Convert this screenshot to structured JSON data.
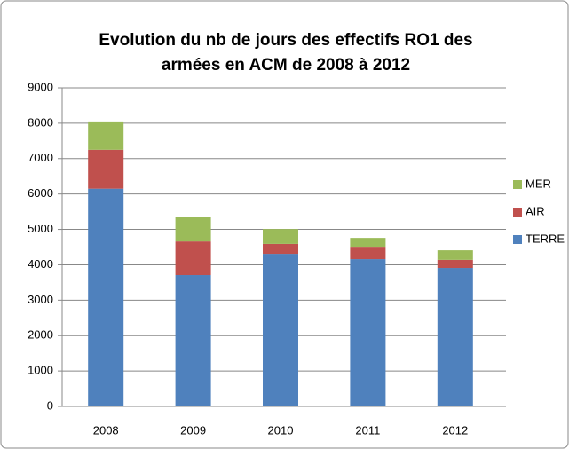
{
  "chart_data": {
    "type": "stacked_bar",
    "title": [
      "Evolution du nb de jours des effectifs RO1 des",
      "armées en ACM de 2008 à 2012"
    ],
    "categories": [
      "2008",
      "2009",
      "2010",
      "2011",
      "2012"
    ],
    "series": [
      {
        "name": "TERRE",
        "color": "#4f81bd",
        "values": [
          6150,
          3710,
          4310,
          4160,
          3910
        ]
      },
      {
        "name": "AIR",
        "color": "#c0504d",
        "values": [
          1100,
          950,
          280,
          350,
          230
        ]
      },
      {
        "name": "MER",
        "color": "#9bbb59",
        "values": [
          800,
          700,
          420,
          250,
          270
        ]
      }
    ],
    "ylim": [
      0,
      9000
    ],
    "yticks": [
      0,
      1000,
      2000,
      3000,
      4000,
      5000,
      6000,
      7000,
      8000,
      9000
    ],
    "grid": true,
    "legend": "right"
  }
}
